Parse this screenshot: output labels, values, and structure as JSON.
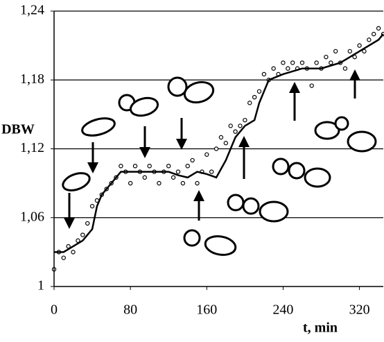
{
  "chart_data": {
    "type": "scatter",
    "xlabel": "t, min",
    "ylabel": "DBW",
    "xlim": [
      0,
      345
    ],
    "ylim": [
      1,
      1.24
    ],
    "xticks": [
      0,
      80,
      160,
      240,
      320
    ],
    "yticks": [
      1,
      {
        "value": 1.06,
        "label": "1,06"
      },
      {
        "value": 1.12,
        "label": "1,12"
      },
      {
        "value": 1.18,
        "label": "1,18"
      },
      {
        "value": 1.24,
        "label": "1,24"
      }
    ],
    "grid": true,
    "series": [
      {
        "type": "scatter",
        "color": "#000000",
        "x": [
          0,
          5,
          10,
          15,
          20,
          25,
          30,
          35,
          40,
          45,
          50,
          55,
          60,
          65,
          70,
          75,
          80,
          85,
          90,
          95,
          100,
          105,
          110,
          115,
          120,
          125,
          130,
          135,
          140,
          145,
          150,
          155,
          160,
          165,
          170,
          175,
          180,
          185,
          190,
          195,
          200,
          205,
          210,
          215,
          220,
          225,
          230,
          235,
          240,
          245,
          250,
          255,
          260,
          265,
          270,
          275,
          280,
          285,
          290,
          295,
          300,
          305,
          310,
          315,
          320,
          325,
          330,
          335,
          340,
          345
        ],
        "y": [
          1.015,
          1.03,
          1.025,
          1.035,
          1.03,
          1.04,
          1.045,
          1.055,
          1.07,
          1.075,
          1.08,
          1.085,
          1.09,
          1.095,
          1.105,
          1.1,
          1.09,
          1.105,
          1.1,
          1.095,
          1.105,
          1.1,
          1.09,
          1.1,
          1.105,
          1.095,
          1.1,
          1.09,
          1.105,
          1.11,
          1.09,
          1.1,
          1.115,
          1.1,
          1.12,
          1.13,
          1.125,
          1.14,
          1.135,
          1.14,
          1.145,
          1.16,
          1.165,
          1.17,
          1.185,
          1.18,
          1.19,
          1.185,
          1.195,
          1.19,
          1.195,
          1.19,
          1.195,
          1.19,
          1.175,
          1.195,
          1.19,
          1.2,
          1.195,
          1.205,
          1.195,
          1.19,
          1.205,
          1.2,
          1.21,
          1.205,
          1.215,
          1.22,
          1.225,
          1.22
        ]
      },
      {
        "type": "line",
        "color": "#000000",
        "x": [
          0,
          10,
          20,
          30,
          40,
          45,
          50,
          60,
          70,
          80,
          100,
          120,
          130,
          140,
          150,
          160,
          170,
          180,
          190,
          200,
          210,
          215,
          225,
          240,
          260,
          280,
          300,
          320,
          340,
          345
        ],
        "y": [
          1.03,
          1.03,
          1.035,
          1.04,
          1.05,
          1.07,
          1.08,
          1.09,
          1.1,
          1.1,
          1.1,
          1.1,
          1.097,
          1.095,
          1.1,
          1.098,
          1.095,
          1.11,
          1.13,
          1.14,
          1.145,
          1.16,
          1.18,
          1.185,
          1.19,
          1.19,
          1.195,
          1.205,
          1.215,
          1.22
        ]
      }
    ]
  }
}
